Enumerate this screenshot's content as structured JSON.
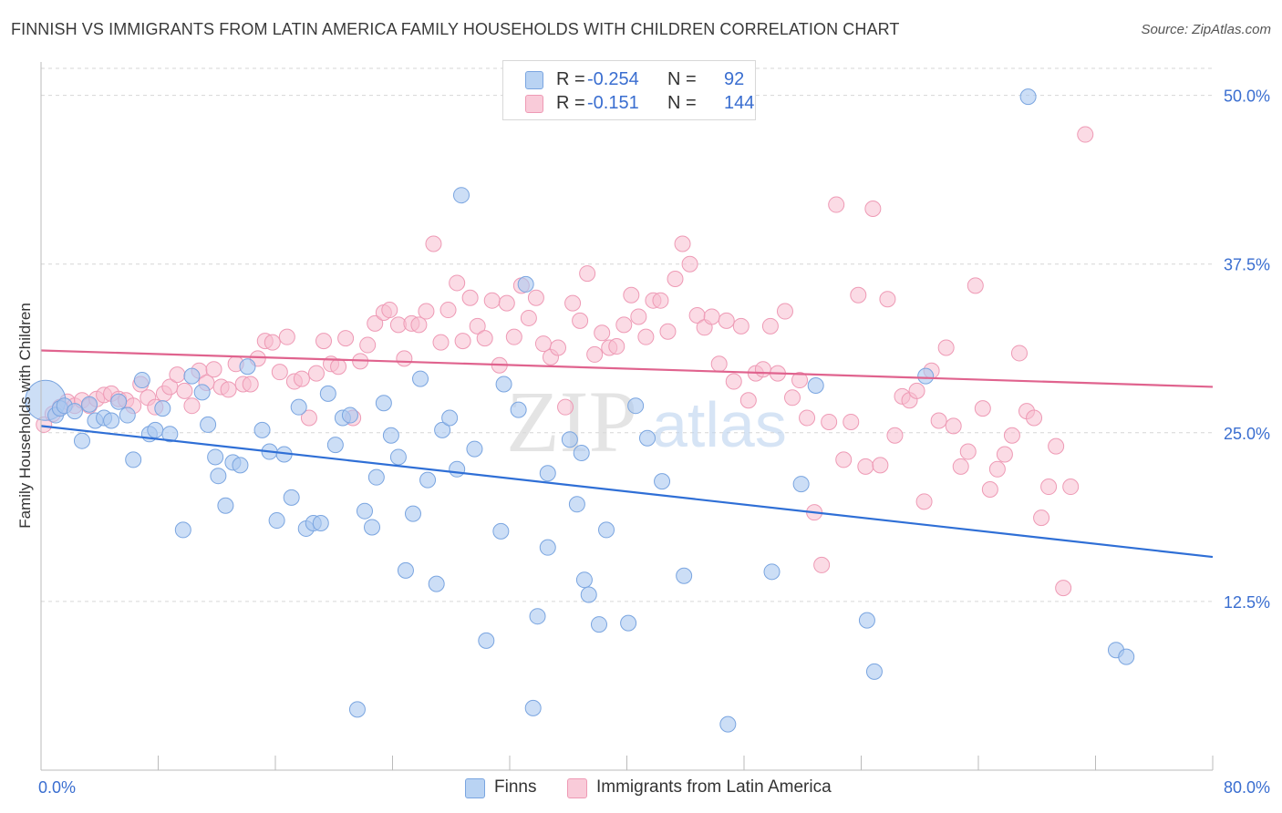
{
  "title": "FINNISH VS IMMIGRANTS FROM LATIN AMERICA FAMILY HOUSEHOLDS WITH CHILDREN CORRELATION CHART",
  "source": "Source: ZipAtlas.com",
  "watermark": {
    "zip": "ZIP",
    "atlas": "atlas"
  },
  "colors": {
    "finns_fill": "#aac8f0",
    "finns_stroke": "#7aa5e0",
    "finns_line": "#2f6fd6",
    "latin_fill": "#f7bed0",
    "latin_stroke": "#ee9ab5",
    "latin_line": "#e0638e",
    "tick_label": "#3a6ed0",
    "grid": "#d6d6d6"
  },
  "legend_top": [
    {
      "r_label": "R =",
      "r_value": "-0.254",
      "n_label": "N =",
      "n_value": "92"
    },
    {
      "r_label": "R =",
      "r_value": "-0.151",
      "n_label": "N =",
      "n_value": "144"
    }
  ],
  "legend_bottom": [
    "Finns",
    "Immigrants from Latin America"
  ],
  "chart_data": {
    "type": "scatter",
    "title": "FINNISH VS IMMIGRANTS FROM LATIN AMERICA FAMILY HOUSEHOLDS WITH CHILDREN CORRELATION CHART",
    "xlabel": "",
    "ylabel": "Family Households with Children",
    "xlim": [
      0,
      80
    ],
    "ylim": [
      0,
      52
    ],
    "x_ticks": [
      0,
      8,
      16,
      24,
      32,
      40,
      48,
      56,
      64,
      72,
      80
    ],
    "x_tick_labels_shown": {
      "0": "0.0%",
      "80": "80.0%"
    },
    "y_ticks": [
      12.5,
      25.0,
      37.5,
      50.0
    ],
    "y_tick_labels": [
      "12.5%",
      "25.0%",
      "37.5%",
      "50.0%"
    ],
    "grid": "horizontal dashed",
    "legend_position": "top-center and bottom",
    "series": [
      {
        "name": "Finns",
        "R": -0.254,
        "N": 92,
        "trend": {
          "x": [
            0,
            80
          ],
          "y": [
            25.5,
            15.8
          ]
        },
        "points": [
          [
            0.3,
            27.4
          ],
          [
            1.0,
            26.3
          ],
          [
            1.3,
            26.8
          ],
          [
            1.6,
            27.0
          ],
          [
            2.3,
            26.6
          ],
          [
            2.8,
            24.4
          ],
          [
            3.3,
            27.1
          ],
          [
            3.7,
            25.9
          ],
          [
            4.3,
            26.1
          ],
          [
            4.8,
            25.9
          ],
          [
            5.3,
            27.3
          ],
          [
            5.9,
            26.3
          ],
          [
            6.3,
            23.0
          ],
          [
            6.9,
            28.9
          ],
          [
            7.4,
            24.9
          ],
          [
            7.8,
            25.2
          ],
          [
            8.3,
            26.8
          ],
          [
            8.8,
            24.9
          ],
          [
            9.7,
            17.8
          ],
          [
            10.3,
            29.2
          ],
          [
            11.0,
            28.0
          ],
          [
            11.4,
            25.6
          ],
          [
            11.9,
            23.2
          ],
          [
            12.1,
            21.8
          ],
          [
            12.6,
            19.6
          ],
          [
            13.1,
            22.8
          ],
          [
            13.6,
            22.6
          ],
          [
            14.1,
            29.9
          ],
          [
            15.1,
            25.2
          ],
          [
            15.6,
            23.6
          ],
          [
            16.1,
            18.5
          ],
          [
            16.6,
            23.4
          ],
          [
            17.1,
            20.2
          ],
          [
            17.6,
            26.9
          ],
          [
            18.1,
            17.9
          ],
          [
            18.6,
            18.3
          ],
          [
            19.1,
            18.3
          ],
          [
            19.6,
            27.9
          ],
          [
            20.1,
            24.1
          ],
          [
            20.6,
            26.1
          ],
          [
            21.1,
            26.3
          ],
          [
            21.6,
            4.5
          ],
          [
            22.1,
            19.2
          ],
          [
            22.6,
            18.0
          ],
          [
            22.9,
            21.7
          ],
          [
            23.4,
            27.2
          ],
          [
            23.9,
            24.8
          ],
          [
            24.4,
            23.2
          ],
          [
            24.9,
            14.8
          ],
          [
            25.4,
            19.0
          ],
          [
            25.9,
            29.0
          ],
          [
            26.4,
            21.5
          ],
          [
            27.0,
            13.8
          ],
          [
            27.4,
            25.2
          ],
          [
            27.9,
            26.1
          ],
          [
            28.4,
            22.3
          ],
          [
            28.7,
            42.6
          ],
          [
            29.6,
            23.8
          ],
          [
            30.4,
            9.6
          ],
          [
            31.4,
            17.7
          ],
          [
            31.6,
            28.6
          ],
          [
            32.6,
            26.7
          ],
          [
            33.1,
            36.0
          ],
          [
            33.6,
            4.6
          ],
          [
            33.9,
            11.4
          ],
          [
            34.6,
            22.0
          ],
          [
            34.6,
            16.5
          ],
          [
            36.1,
            24.5
          ],
          [
            36.6,
            19.7
          ],
          [
            36.9,
            23.5
          ],
          [
            37.1,
            14.1
          ],
          [
            37.4,
            13.0
          ],
          [
            38.1,
            10.8
          ],
          [
            38.6,
            17.8
          ],
          [
            40.1,
            10.9
          ],
          [
            40.6,
            27.0
          ],
          [
            41.4,
            24.6
          ],
          [
            42.4,
            21.4
          ],
          [
            43.9,
            14.4
          ],
          [
            46.9,
            3.4
          ],
          [
            49.9,
            14.7
          ],
          [
            51.9,
            21.2
          ],
          [
            52.9,
            28.5
          ],
          [
            56.4,
            11.1
          ],
          [
            56.9,
            7.3
          ],
          [
            60.4,
            29.2
          ],
          [
            67.4,
            49.9
          ],
          [
            73.4,
            8.9
          ],
          [
            74.1,
            8.4
          ]
        ]
      },
      {
        "name": "Immigrants from Latin America",
        "R": -0.151,
        "N": 144,
        "trend": {
          "x": [
            0,
            80
          ],
          "y": [
            31.1,
            28.4
          ]
        },
        "points": [
          [
            0.2,
            25.6
          ],
          [
            0.8,
            26.4
          ],
          [
            1.3,
            26.9
          ],
          [
            1.8,
            27.3
          ],
          [
            2.3,
            27.0
          ],
          [
            2.8,
            27.4
          ],
          [
            3.3,
            27.0
          ],
          [
            3.8,
            27.5
          ],
          [
            4.3,
            27.8
          ],
          [
            4.8,
            27.9
          ],
          [
            5.3,
            27.5
          ],
          [
            5.8,
            27.4
          ],
          [
            6.3,
            27.0
          ],
          [
            6.8,
            28.6
          ],
          [
            7.3,
            27.6
          ],
          [
            7.8,
            26.9
          ],
          [
            8.4,
            27.9
          ],
          [
            8.8,
            28.4
          ],
          [
            9.3,
            29.3
          ],
          [
            9.8,
            28.1
          ],
          [
            10.3,
            27.0
          ],
          [
            10.8,
            29.6
          ],
          [
            11.3,
            28.7
          ],
          [
            11.8,
            29.7
          ],
          [
            12.3,
            28.4
          ],
          [
            12.8,
            28.2
          ],
          [
            13.3,
            30.1
          ],
          [
            13.8,
            28.6
          ],
          [
            14.3,
            28.6
          ],
          [
            14.8,
            30.5
          ],
          [
            15.3,
            31.8
          ],
          [
            15.8,
            31.7
          ],
          [
            16.3,
            29.5
          ],
          [
            16.8,
            32.1
          ],
          [
            17.3,
            28.8
          ],
          [
            17.8,
            29.0
          ],
          [
            18.3,
            26.1
          ],
          [
            18.8,
            29.4
          ],
          [
            19.3,
            31.8
          ],
          [
            19.8,
            30.1
          ],
          [
            20.3,
            29.9
          ],
          [
            20.8,
            32.0
          ],
          [
            21.3,
            26.1
          ],
          [
            21.8,
            30.3
          ],
          [
            22.3,
            31.5
          ],
          [
            22.8,
            33.1
          ],
          [
            23.4,
            33.9
          ],
          [
            23.8,
            34.1
          ],
          [
            24.4,
            33.0
          ],
          [
            24.8,
            30.5
          ],
          [
            25.3,
            33.1
          ],
          [
            25.8,
            33.0
          ],
          [
            26.3,
            34.0
          ],
          [
            26.8,
            39.0
          ],
          [
            27.3,
            31.7
          ],
          [
            27.8,
            34.1
          ],
          [
            28.4,
            36.1
          ],
          [
            28.8,
            31.8
          ],
          [
            29.3,
            35.0
          ],
          [
            29.8,
            32.9
          ],
          [
            30.3,
            32.0
          ],
          [
            30.8,
            34.8
          ],
          [
            31.3,
            30.0
          ],
          [
            31.8,
            34.6
          ],
          [
            32.3,
            32.1
          ],
          [
            32.8,
            35.9
          ],
          [
            33.3,
            33.5
          ],
          [
            33.8,
            35.0
          ],
          [
            34.3,
            31.6
          ],
          [
            34.8,
            30.6
          ],
          [
            35.3,
            31.3
          ],
          [
            35.8,
            26.9
          ],
          [
            36.3,
            34.6
          ],
          [
            36.8,
            33.3
          ],
          [
            37.3,
            36.8
          ],
          [
            37.8,
            30.8
          ],
          [
            38.3,
            32.4
          ],
          [
            38.8,
            31.3
          ],
          [
            39.3,
            31.4
          ],
          [
            39.8,
            33.0
          ],
          [
            40.3,
            35.2
          ],
          [
            40.8,
            33.6
          ],
          [
            41.3,
            32.1
          ],
          [
            41.8,
            34.8
          ],
          [
            42.3,
            34.8
          ],
          [
            42.8,
            32.5
          ],
          [
            43.3,
            36.4
          ],
          [
            43.8,
            39.0
          ],
          [
            44.3,
            37.5
          ],
          [
            44.8,
            33.7
          ],
          [
            45.3,
            32.8
          ],
          [
            45.8,
            33.6
          ],
          [
            46.3,
            30.1
          ],
          [
            46.8,
            33.3
          ],
          [
            47.3,
            28.8
          ],
          [
            47.8,
            32.9
          ],
          [
            48.3,
            27.4
          ],
          [
            48.8,
            29.4
          ],
          [
            49.3,
            29.7
          ],
          [
            49.8,
            32.9
          ],
          [
            50.3,
            29.4
          ],
          [
            50.8,
            34.0
          ],
          [
            51.3,
            27.6
          ],
          [
            51.8,
            28.9
          ],
          [
            52.3,
            26.1
          ],
          [
            52.8,
            19.1
          ],
          [
            53.3,
            15.2
          ],
          [
            53.8,
            25.8
          ],
          [
            54.3,
            41.9
          ],
          [
            54.8,
            23.0
          ],
          [
            55.3,
            25.8
          ],
          [
            55.8,
            35.2
          ],
          [
            56.3,
            22.5
          ],
          [
            56.8,
            41.6
          ],
          [
            57.3,
            22.6
          ],
          [
            57.8,
            34.9
          ],
          [
            58.3,
            24.8
          ],
          [
            58.8,
            27.7
          ],
          [
            59.3,
            27.4
          ],
          [
            59.8,
            28.1
          ],
          [
            60.3,
            19.9
          ],
          [
            60.8,
            29.6
          ],
          [
            61.3,
            25.9
          ],
          [
            61.8,
            31.3
          ],
          [
            62.3,
            25.5
          ],
          [
            62.8,
            22.5
          ],
          [
            63.3,
            23.6
          ],
          [
            63.8,
            35.9
          ],
          [
            64.3,
            26.8
          ],
          [
            64.8,
            20.8
          ],
          [
            65.3,
            22.3
          ],
          [
            65.8,
            23.4
          ],
          [
            66.3,
            24.8
          ],
          [
            66.8,
            30.9
          ],
          [
            67.3,
            26.6
          ],
          [
            67.8,
            26.1
          ],
          [
            68.3,
            18.7
          ],
          [
            68.8,
            21.0
          ],
          [
            69.3,
            24.0
          ],
          [
            69.8,
            13.5
          ],
          [
            70.3,
            21.0
          ],
          [
            71.3,
            47.1
          ]
        ]
      }
    ]
  }
}
